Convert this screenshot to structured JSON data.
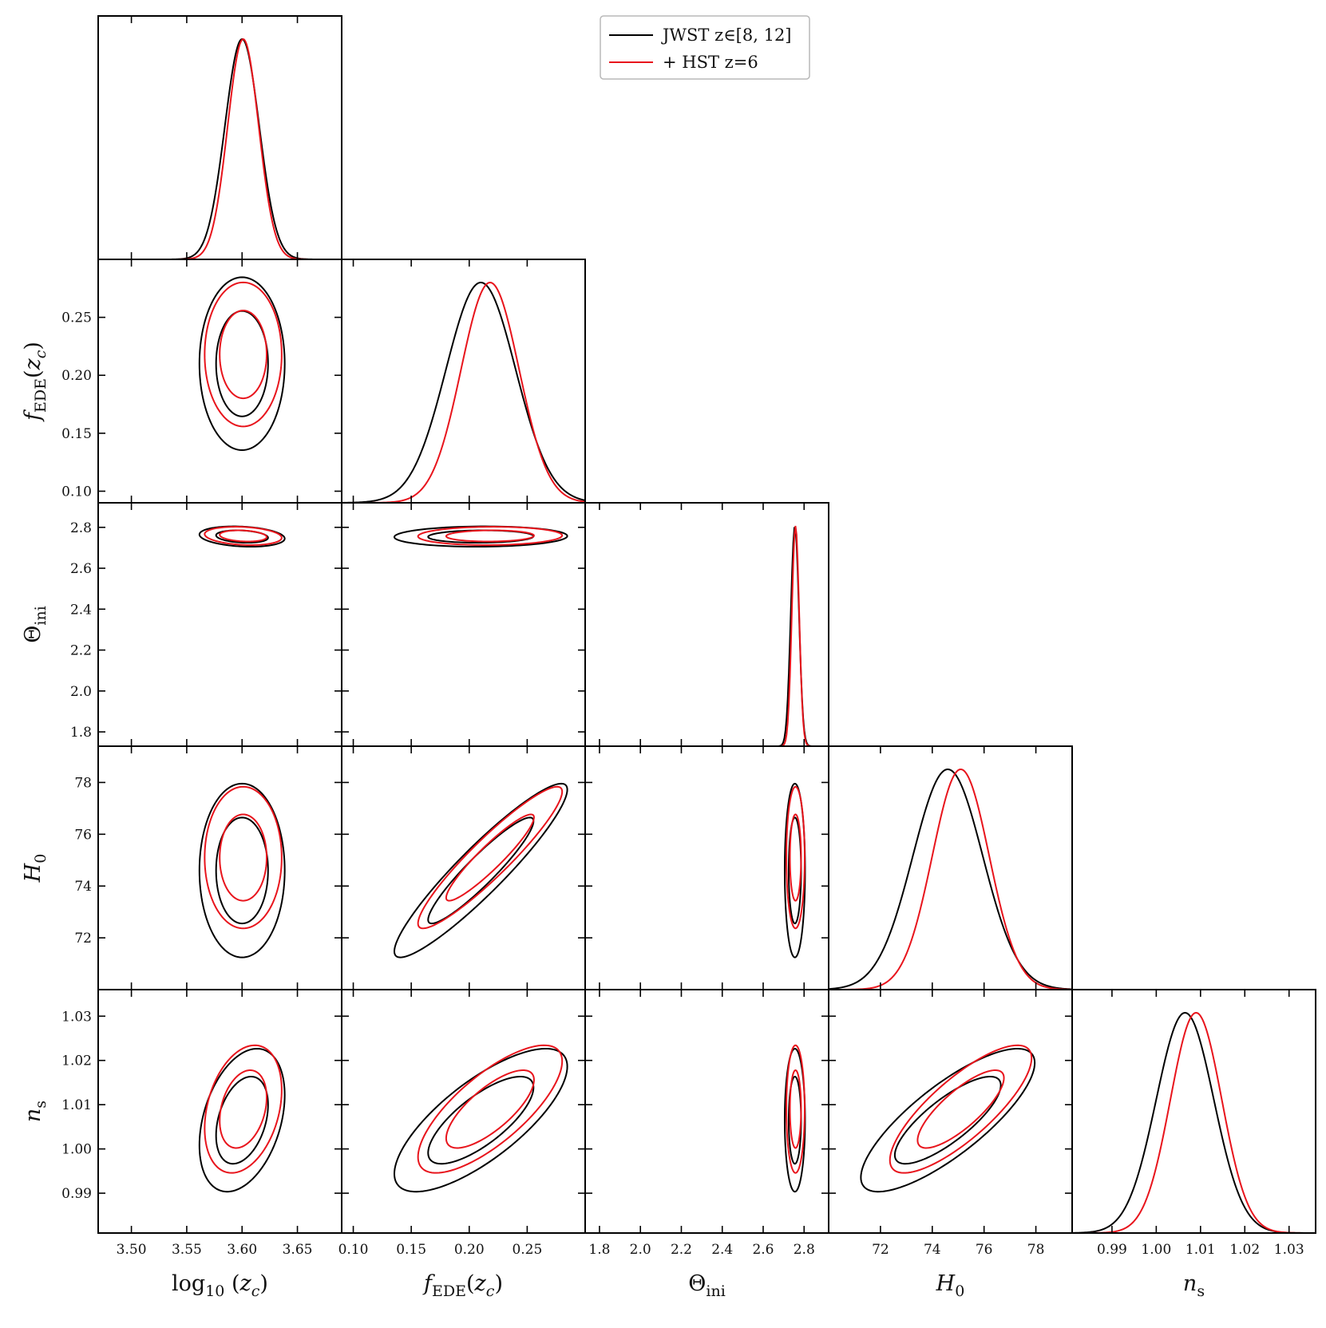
{
  "chart_data": {
    "type": "corner",
    "title": "",
    "parameters": [
      {
        "key": "logzc",
        "label": "log10(zc)",
        "display": "log₁₀(z_c)",
        "range": [
          3.47,
          3.69
        ],
        "ticks": [
          3.5,
          3.55,
          3.6,
          3.65
        ],
        "tick_labels": [
          "3.50",
          "3.55",
          "3.60",
          "3.65"
        ]
      },
      {
        "key": "fede",
        "label": "fEDE(zc)",
        "display": "f_EDE(z_c)",
        "range": [
          0.09,
          0.3
        ],
        "ticks": [
          0.1,
          0.15,
          0.2,
          0.25
        ],
        "tick_labels": [
          "0.10",
          "0.15",
          "0.20",
          "0.25"
        ]
      },
      {
        "key": "theta",
        "label": "Theta_ini",
        "display": "Θ_ini",
        "range": [
          1.73,
          2.92
        ],
        "ticks": [
          1.8,
          2.0,
          2.2,
          2.4,
          2.6,
          2.8
        ],
        "tick_labels": [
          "1.8",
          "2.0",
          "2.2",
          "2.4",
          "2.6",
          "2.8"
        ]
      },
      {
        "key": "H0",
        "label": "H0",
        "display": "H_0",
        "range": [
          70.0,
          79.4
        ],
        "ticks": [
          72,
          74,
          76,
          78
        ],
        "tick_labels": [
          "72",
          "74",
          "76",
          "78"
        ]
      },
      {
        "key": "ns",
        "label": "ns",
        "display": "n_s",
        "range": [
          0.981,
          1.036
        ],
        "ticks": [
          0.99,
          1.0,
          1.01,
          1.02,
          1.03
        ],
        "tick_labels": [
          "0.99",
          "1.00",
          "1.01",
          "1.02",
          "1.03"
        ]
      }
    ],
    "series": [
      {
        "name": "JWST z∈[8, 12]",
        "color": "#000000",
        "marginals": {
          "logzc": {
            "mean": 3.6,
            "sigma": 0.0155
          },
          "fede": {
            "mean": 0.21,
            "sigma": 0.03
          },
          "theta": {
            "mean": 2.755,
            "sigma": 0.02
          },
          "H0": {
            "mean": 74.6,
            "sigma": 1.35
          },
          "ns": {
            "mean": 1.0065,
            "sigma": 0.0065
          }
        },
        "correlations": {
          "logzc|fede": 0.0,
          "logzc|theta": -0.2,
          "logzc|H0": 0.0,
          "logzc|ns": 0.35,
          "fede|theta": 0.05,
          "fede|H0": 0.93,
          "fede|ns": 0.75,
          "theta|H0": 0.0,
          "theta|ns": 0.0,
          "H0|ns": 0.8
        }
      },
      {
        "name": "+ HST z=6",
        "color": "#e8141c",
        "marginals": {
          "logzc": {
            "mean": 3.601,
            "sigma": 0.014
          },
          "fede": {
            "mean": 0.218,
            "sigma": 0.025
          },
          "theta": {
            "mean": 2.758,
            "sigma": 0.018
          },
          "H0": {
            "mean": 75.1,
            "sigma": 1.1
          },
          "ns": {
            "mean": 1.009,
            "sigma": 0.0058
          }
        },
        "correlations": {
          "logzc|fede": 0.0,
          "logzc|theta": -0.2,
          "logzc|H0": 0.0,
          "logzc|ns": 0.3,
          "fede|theta": 0.05,
          "fede|H0": 0.93,
          "fede|ns": 0.75,
          "theta|H0": 0.0,
          "theta|ns": 0.0,
          "H0|ns": 0.8
        }
      }
    ],
    "contour_levels": [
      "68%",
      "95%"
    ],
    "legend": {
      "position": "top-center"
    }
  }
}
